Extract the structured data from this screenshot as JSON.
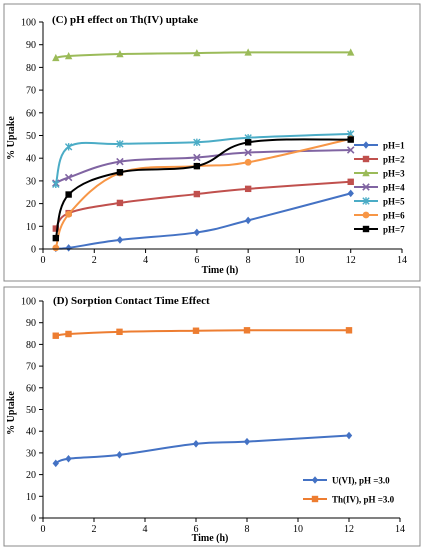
{
  "chart_data": [
    {
      "type": "line",
      "title": "(C) pH effect on Th(IV) uptake",
      "xlabel": "Time (h)",
      "ylabel": "% Uptake",
      "xlim": [
        0,
        14
      ],
      "ylim": [
        0,
        100
      ],
      "xticks": [
        0,
        2,
        4,
        6,
        8,
        10,
        12,
        14
      ],
      "yticks": [
        0,
        10,
        20,
        30,
        40,
        50,
        60,
        70,
        80,
        90,
        100
      ],
      "grid": false,
      "legend": "right",
      "series": [
        {
          "name": "pH=1",
          "color": "#4472C4",
          "marker": "diamond",
          "x": [
            0.5,
            1,
            3,
            6,
            8,
            12
          ],
          "y": [
            0.3,
            0.5,
            4,
            7.3,
            12.6,
            24.5
          ]
        },
        {
          "name": "pH=2",
          "color": "#C0504D",
          "marker": "square",
          "x": [
            0.5,
            1,
            3,
            6,
            8,
            12
          ],
          "y": [
            9,
            15.8,
            20.3,
            24.2,
            26.5,
            29.6
          ]
        },
        {
          "name": "pH=3",
          "color": "#9BBB59",
          "marker": "triangle",
          "x": [
            0.5,
            1,
            3,
            6,
            8,
            12
          ],
          "y": [
            84.2,
            85,
            85.9,
            86.3,
            86.6,
            86.6
          ]
        },
        {
          "name": "pH=4",
          "color": "#8064A2",
          "marker": "x",
          "x": [
            0.5,
            1,
            3,
            6,
            8,
            12
          ],
          "y": [
            29,
            31.5,
            38.5,
            40.3,
            42.5,
            43.6
          ]
        },
        {
          "name": "pH=5",
          "color": "#4BACC6",
          "marker": "star",
          "x": [
            0.5,
            1,
            3,
            6,
            8,
            12
          ],
          "y": [
            28.5,
            45,
            46.3,
            47,
            49,
            50.7
          ]
        },
        {
          "name": "pH=6",
          "color": "#F79646",
          "marker": "circle",
          "x": [
            0.5,
            1,
            3,
            6,
            8,
            12
          ],
          "y": [
            0.5,
            15.3,
            33.5,
            36.5,
            38.2,
            48.5
          ]
        },
        {
          "name": "pH=7",
          "color": "#000000",
          "marker": "square",
          "x": [
            0.5,
            1,
            3,
            6,
            8,
            12
          ],
          "y": [
            4.8,
            24,
            33.8,
            36.5,
            47,
            48.2
          ]
        }
      ]
    },
    {
      "type": "line",
      "title": "(D) Sorption Contact Time Effect",
      "xlabel": "Time (h)",
      "ylabel": "% Uptake",
      "xlim": [
        0,
        14
      ],
      "ylim": [
        0,
        100
      ],
      "xticks": [
        0,
        2,
        4,
        6,
        8,
        10,
        12,
        14
      ],
      "yticks": [
        0,
        10,
        20,
        30,
        40,
        50,
        60,
        70,
        80,
        90,
        100
      ],
      "grid": false,
      "legend": "bottom-right",
      "series": [
        {
          "name": "U(VI), pH =3.0",
          "color": "#4472C4",
          "marker": "diamond",
          "x": [
            0.5,
            1,
            3,
            6,
            8,
            12
          ],
          "y": [
            25.2,
            27.3,
            29.1,
            34.2,
            35.2,
            38
          ]
        },
        {
          "name": "Th(IV), pH =3.0",
          "color": "#ED7D31",
          "marker": "square",
          "x": [
            0.5,
            1,
            3,
            6,
            8,
            12
          ],
          "y": [
            84,
            84.8,
            85.8,
            86.3,
            86.5,
            86.5
          ]
        }
      ]
    }
  ]
}
